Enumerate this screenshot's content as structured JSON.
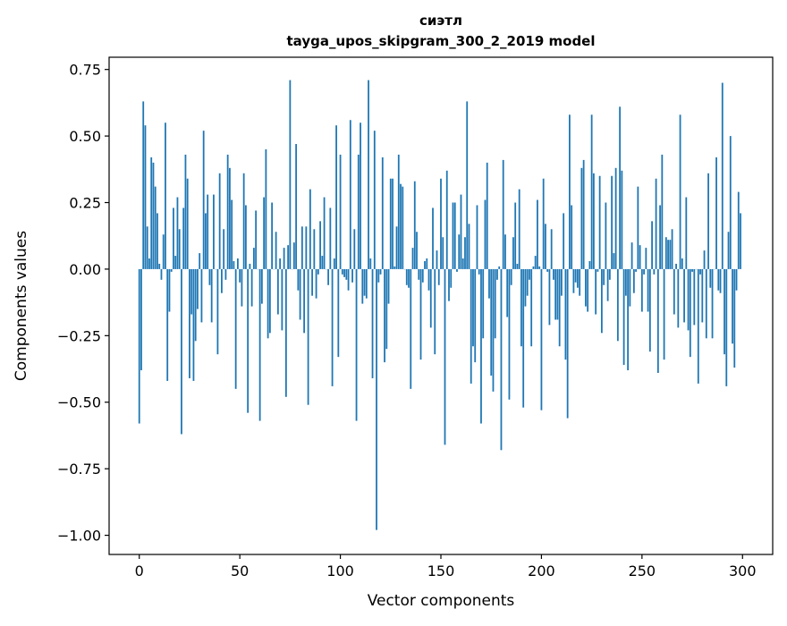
{
  "chart_data": {
    "type": "bar",
    "title": "сиэтл",
    "subtitle": "tayga_upos_skipgram_300_2_2019 model",
    "xlabel": "Vector components",
    "ylabel": "Components values",
    "xlim": [
      -15,
      315
    ],
    "ylim": [
      -1.072,
      0.796
    ],
    "xticks": [
      0,
      50,
      100,
      150,
      200,
      250,
      300
    ],
    "xtick_labels": [
      "0",
      "50",
      "100",
      "150",
      "200",
      "250",
      "300"
    ],
    "yticks": [
      0.75,
      0.5,
      0.25,
      0.0,
      -0.25,
      -0.5,
      -0.75,
      -1.0
    ],
    "ytick_labels": [
      "0.75",
      "0.50",
      "0.25",
      "0.00",
      "−0.25",
      "−0.50",
      "−0.75",
      "−1.00"
    ],
    "grid": false,
    "bar_color": "#1f77b4",
    "values": [
      -0.58,
      -0.38,
      0.63,
      0.54,
      0.16,
      0.04,
      0.42,
      0.4,
      0.31,
      0.21,
      0.02,
      -0.04,
      0.13,
      0.55,
      -0.42,
      -0.16,
      -0.01,
      0.23,
      0.05,
      0.27,
      0.15,
      -0.62,
      0.23,
      0.43,
      0.34,
      -0.41,
      -0.17,
      -0.42,
      -0.27,
      -0.15,
      0.06,
      -0.2,
      0.52,
      0.21,
      0.28,
      -0.06,
      -0.2,
      0.28,
      0.0,
      -0.32,
      0.36,
      -0.09,
      0.15,
      -0.04,
      0.43,
      0.38,
      0.26,
      0.03,
      -0.45,
      0.04,
      -0.05,
      -0.14,
      0.36,
      0.24,
      -0.54,
      0.02,
      -0.14,
      0.08,
      0.22,
      0.0,
      -0.57,
      -0.13,
      0.27,
      0.45,
      -0.26,
      -0.24,
      0.25,
      0.0,
      0.14,
      -0.17,
      0.04,
      -0.23,
      0.08,
      -0.48,
      0.09,
      0.71,
      0.0,
      0.1,
      0.47,
      -0.08,
      -0.19,
      0.16,
      -0.24,
      0.16,
      -0.51,
      0.3,
      -0.1,
      0.15,
      -0.11,
      -0.02,
      0.18,
      0.05,
      0.27,
      0.0,
      -0.06,
      0.23,
      -0.44,
      0.04,
      0.54,
      -0.33,
      0.43,
      -0.02,
      -0.03,
      -0.04,
      -0.08,
      0.56,
      -0.05,
      0.15,
      -0.57,
      0.43,
      0.55,
      -0.13,
      -0.1,
      -0.11,
      0.71,
      0.04,
      -0.41,
      0.52,
      -0.98,
      -0.05,
      -0.02,
      0.42,
      -0.35,
      -0.3,
      -0.13,
      0.34,
      0.34,
      0.01,
      0.16,
      0.43,
      0.32,
      0.31,
      0.0,
      -0.06,
      -0.07,
      -0.45,
      0.08,
      0.33,
      0.14,
      -0.04,
      -0.34,
      -0.05,
      0.03,
      0.04,
      -0.08,
      -0.22,
      0.23,
      -0.32,
      0.07,
      -0.06,
      0.34,
      0.12,
      -0.66,
      0.37,
      -0.12,
      -0.07,
      0.25,
      0.25,
      -0.01,
      0.13,
      0.28,
      0.04,
      0.12,
      0.63,
      0.17,
      -0.43,
      -0.29,
      -0.35,
      0.24,
      -0.02,
      -0.58,
      -0.26,
      0.26,
      0.4,
      -0.11,
      -0.4,
      -0.46,
      -0.26,
      -0.04,
      0.01,
      -0.68,
      0.41,
      0.13,
      -0.18,
      -0.49,
      -0.06,
      0.12,
      0.25,
      0.02,
      0.3,
      -0.29,
      -0.52,
      -0.14,
      -0.1,
      -0.04,
      -0.29,
      0.01,
      0.05,
      0.26,
      0.01,
      -0.53,
      0.34,
      0.17,
      -0.01,
      -0.21,
      0.15,
      -0.04,
      -0.19,
      -0.19,
      -0.29,
      -0.1,
      0.21,
      -0.34,
      -0.56,
      0.58,
      0.24,
      -0.09,
      -0.05,
      -0.07,
      -0.1,
      0.38,
      0.41,
      -0.14,
      -0.16,
      0.03,
      0.58,
      0.36,
      -0.17,
      -0.01,
      0.35,
      -0.24,
      -0.06,
      0.25,
      -0.12,
      -0.04,
      0.35,
      0.06,
      0.38,
      -0.27,
      0.61,
      0.37,
      -0.36,
      -0.1,
      -0.38,
      -0.14,
      0.1,
      -0.09,
      -0.01,
      0.31,
      0.09,
      -0.16,
      -0.02,
      0.08,
      -0.16,
      -0.31,
      0.18,
      -0.02,
      0.34,
      -0.39,
      0.24,
      0.43,
      -0.34,
      0.12,
      0.11,
      0.11,
      0.15,
      -0.17,
      0.02,
      -0.22,
      0.58,
      0.04,
      -0.2,
      0.27,
      -0.23,
      -0.33,
      -0.01,
      -0.21,
      0.0,
      -0.43,
      -0.02,
      -0.2,
      0.07,
      -0.26,
      0.36,
      -0.07,
      -0.26,
      0.0,
      0.42,
      -0.08,
      -0.09,
      0.7,
      -0.32,
      -0.44,
      0.14,
      0.5,
      -0.28,
      -0.37,
      -0.08,
      0.29,
      0.21
    ]
  }
}
